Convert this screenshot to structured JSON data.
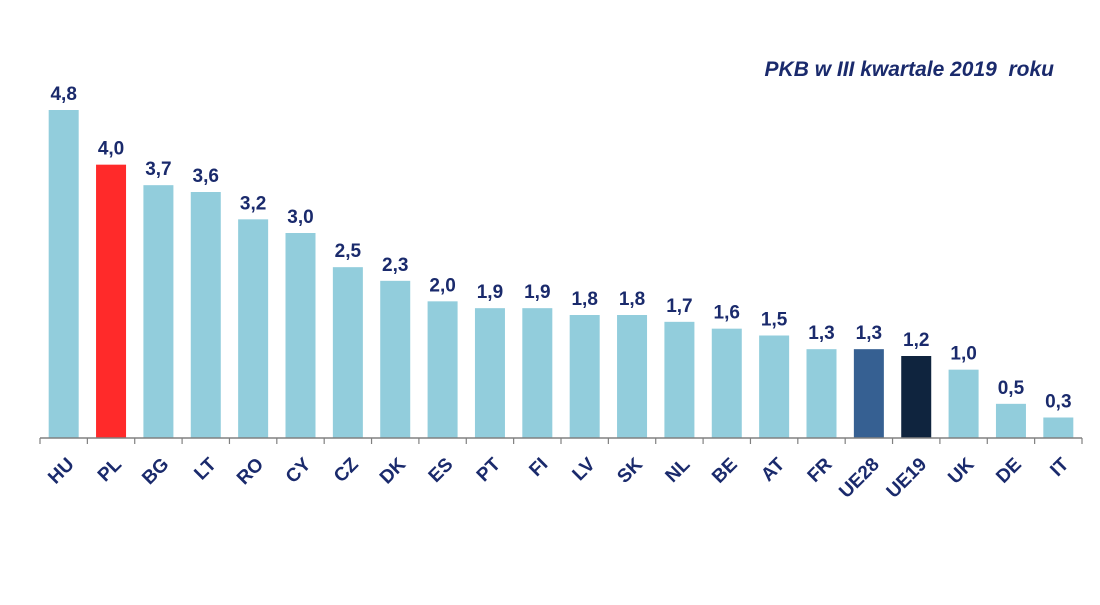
{
  "chart_data": {
    "type": "bar",
    "title": "PKB w III kwartale 2019  roku",
    "xlabel": "",
    "ylabel": "",
    "categories": [
      "HU",
      "PL",
      "BG",
      "LT",
      "RO",
      "CY",
      "CZ",
      "DK",
      "ES",
      "PT",
      "FI",
      "LV",
      "SK",
      "NL",
      "BE",
      "AT",
      "FR",
      "UE28",
      "UE19",
      "UK",
      "DE",
      "IT"
    ],
    "values": [
      4.8,
      4.0,
      3.7,
      3.6,
      3.2,
      3.0,
      2.5,
      2.3,
      2.0,
      1.9,
      1.9,
      1.8,
      1.8,
      1.7,
      1.6,
      1.5,
      1.3,
      1.3,
      1.2,
      1.0,
      0.5,
      0.3
    ],
    "value_labels": [
      "4,8",
      "4,0",
      "3,7",
      "3,6",
      "3,2",
      "3,0",
      "2,5",
      "2,3",
      "2,0",
      "1,9",
      "1,9",
      "1,8",
      "1,8",
      "1,7",
      "1,6",
      "1,5",
      "1,3",
      "1,3",
      "1,2",
      "1,0",
      "0,5",
      "0,3"
    ],
    "ylim": [
      0,
      4.8
    ],
    "grid": false,
    "legend": "none",
    "colors": {
      "default": "#92cddc",
      "highlight": {
        "PL": "#ff2a2a",
        "UE28": "#366092",
        "UE19": "#0f243e"
      },
      "text": "#1a2a6c",
      "axis": "#808080"
    }
  }
}
